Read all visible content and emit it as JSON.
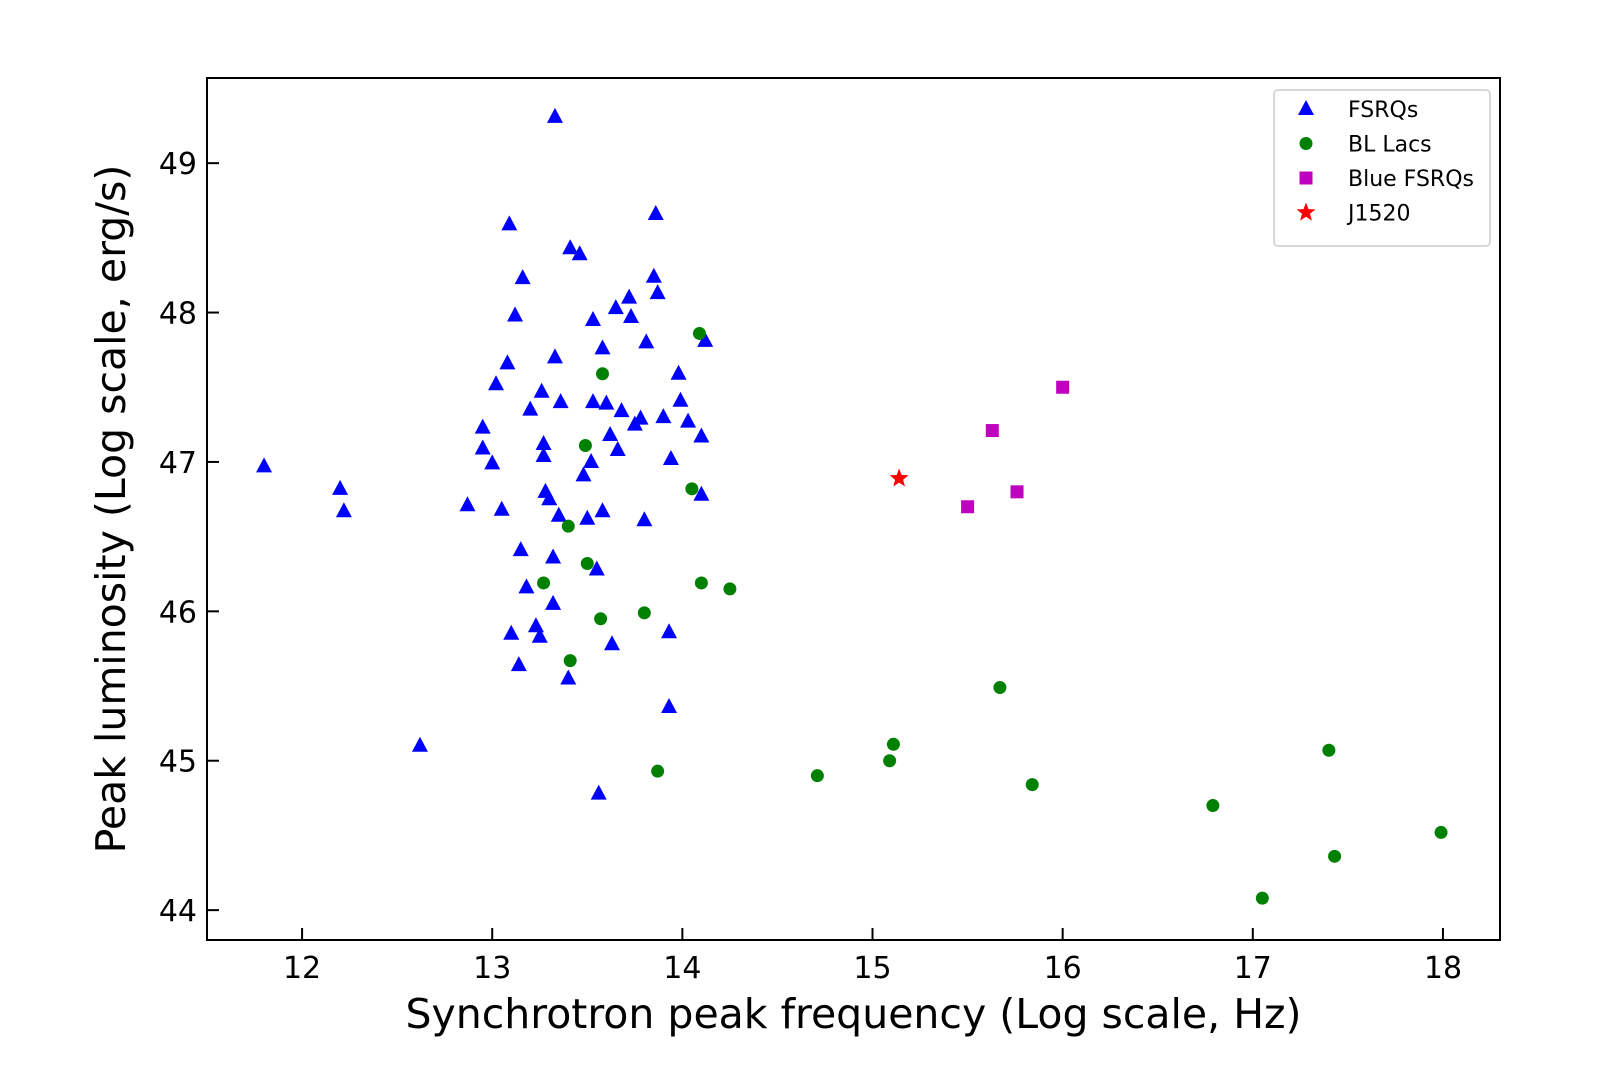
{
  "chart_data": {
    "type": "scatter",
    "xlabel": "Synchrotron peak frequency (Log scale, Hz)",
    "ylabel": "Peak luminosity (Log scale, erg/s)",
    "xlim": [
      11.5,
      18.3
    ],
    "ylim": [
      43.8,
      49.57
    ],
    "x_ticks": [
      12,
      13,
      14,
      15,
      16,
      17,
      18
    ],
    "y_ticks": [
      44,
      45,
      46,
      47,
      48,
      49
    ],
    "grid": false,
    "legend_position": "top-right",
    "series": [
      {
        "name": "FSRQs",
        "marker": "triangle",
        "color": "#0000ff",
        "points": [
          [
            11.8,
            46.97
          ],
          [
            12.2,
            46.82
          ],
          [
            12.22,
            46.67
          ],
          [
            12.62,
            45.1
          ],
          [
            12.87,
            46.71
          ],
          [
            12.95,
            47.23
          ],
          [
            12.95,
            47.09
          ],
          [
            13.0,
            46.99
          ],
          [
            13.02,
            47.52
          ],
          [
            13.05,
            46.68
          ],
          [
            13.08,
            47.66
          ],
          [
            13.09,
            48.59
          ],
          [
            13.1,
            45.85
          ],
          [
            13.12,
            47.98
          ],
          [
            13.14,
            45.64
          ],
          [
            13.15,
            46.41
          ],
          [
            13.16,
            48.23
          ],
          [
            13.18,
            46.16
          ],
          [
            13.2,
            47.35
          ],
          [
            13.23,
            45.9
          ],
          [
            13.25,
            45.83
          ],
          [
            13.26,
            47.47
          ],
          [
            13.27,
            47.12
          ],
          [
            13.27,
            47.04
          ],
          [
            13.28,
            46.8
          ],
          [
            13.3,
            46.75
          ],
          [
            13.32,
            46.36
          ],
          [
            13.32,
            46.05
          ],
          [
            13.33,
            47.7
          ],
          [
            13.33,
            49.31
          ],
          [
            13.35,
            46.64
          ],
          [
            13.36,
            47.4
          ],
          [
            13.4,
            45.55
          ],
          [
            13.41,
            48.43
          ],
          [
            13.46,
            48.39
          ],
          [
            13.48,
            46.91
          ],
          [
            13.5,
            46.62
          ],
          [
            13.52,
            47.0
          ],
          [
            13.53,
            47.4
          ],
          [
            13.53,
            47.95
          ],
          [
            13.55,
            46.28
          ],
          [
            13.56,
            44.78
          ],
          [
            13.58,
            47.76
          ],
          [
            13.58,
            46.67
          ],
          [
            13.6,
            47.39
          ],
          [
            13.62,
            47.18
          ],
          [
            13.63,
            45.78
          ],
          [
            13.65,
            48.03
          ],
          [
            13.66,
            47.08
          ],
          [
            13.68,
            47.34
          ],
          [
            13.72,
            48.1
          ],
          [
            13.73,
            47.97
          ],
          [
            13.75,
            47.25
          ],
          [
            13.78,
            47.29
          ],
          [
            13.8,
            46.61
          ],
          [
            13.81,
            47.8
          ],
          [
            13.85,
            48.24
          ],
          [
            13.86,
            48.66
          ],
          [
            13.87,
            48.13
          ],
          [
            13.9,
            47.3
          ],
          [
            13.93,
            45.86
          ],
          [
            13.93,
            45.36
          ],
          [
            13.94,
            47.02
          ],
          [
            13.98,
            47.59
          ],
          [
            13.99,
            47.41
          ],
          [
            14.03,
            47.27
          ],
          [
            14.1,
            46.78
          ],
          [
            14.1,
            47.17
          ],
          [
            14.12,
            47.81
          ]
        ]
      },
      {
        "name": "BL Lacs",
        "marker": "circle",
        "color": "#008000",
        "points": [
          [
            13.27,
            46.19
          ],
          [
            13.4,
            46.57
          ],
          [
            13.41,
            45.67
          ],
          [
            13.49,
            47.11
          ],
          [
            13.5,
            46.32
          ],
          [
            13.57,
            45.95
          ],
          [
            13.58,
            47.59
          ],
          [
            13.8,
            45.99
          ],
          [
            13.87,
            44.93
          ],
          [
            14.05,
            46.82
          ],
          [
            14.09,
            47.86
          ],
          [
            14.1,
            46.19
          ],
          [
            14.25,
            46.15
          ],
          [
            14.71,
            44.9
          ],
          [
            15.09,
            45.0
          ],
          [
            15.11,
            45.11
          ],
          [
            15.67,
            45.49
          ],
          [
            15.84,
            44.84
          ],
          [
            16.79,
            44.7
          ],
          [
            17.05,
            44.08
          ],
          [
            17.4,
            45.07
          ],
          [
            17.43,
            44.36
          ],
          [
            17.99,
            44.52
          ]
        ]
      },
      {
        "name": "Blue FSRQs",
        "marker": "square",
        "color": "#bf00bf",
        "points": [
          [
            15.5,
            46.7
          ],
          [
            15.63,
            47.21
          ],
          [
            15.76,
            46.8
          ],
          [
            16.0,
            47.5
          ]
        ]
      },
      {
        "name": "J1520",
        "marker": "star",
        "color": "#ff0000",
        "points": [
          [
            15.14,
            46.89
          ]
        ]
      }
    ]
  }
}
